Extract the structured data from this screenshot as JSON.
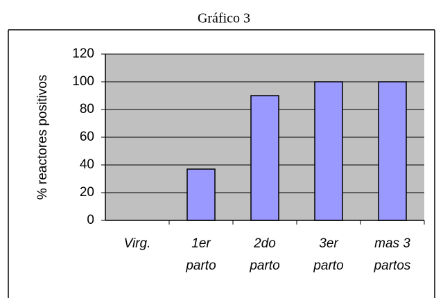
{
  "chart_data": {
    "type": "bar",
    "title": "Gráfico 3",
    "y_label": "% reactores positivos",
    "categories": [
      [
        "Virg."
      ],
      [
        "1er",
        "parto"
      ],
      [
        "2do",
        "parto"
      ],
      [
        "3er",
        "parto"
      ],
      [
        "mas 3",
        "partos"
      ]
    ],
    "values": [
      0,
      37,
      90,
      100,
      100
    ],
    "color": "#9999ff",
    "plot_background": "#c0c0c0",
    "ylim": [
      0,
      120
    ],
    "yticks": [
      0,
      20,
      40,
      60,
      80,
      100,
      120
    ],
    "grid": true
  }
}
